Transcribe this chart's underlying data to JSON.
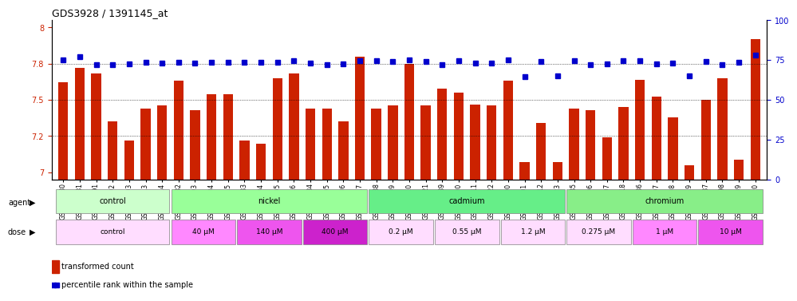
{
  "title": "GDS3928 / 1391145_at",
  "samples": [
    "GSM782280",
    "GSM782281",
    "GSM782291",
    "GSM782302",
    "GSM782303",
    "GSM782313",
    "GSM782314",
    "GSM782282",
    "GSM782293",
    "GSM782304",
    "GSM782315",
    "GSM782283",
    "GSM782294",
    "GSM782305",
    "GSM782316",
    "GSM782284",
    "GSM782295",
    "GSM782306",
    "GSM782317",
    "GSM782288",
    "GSM782299",
    "GSM782310",
    "GSM782321",
    "GSM782289",
    "GSM782300",
    "GSM782311",
    "GSM782322",
    "GSM782290",
    "GSM782301",
    "GSM782312",
    "GSM782323",
    "GSM782285",
    "GSM782296",
    "GSM782307",
    "GSM782318",
    "GSM782286",
    "GSM782297",
    "GSM782308",
    "GSM782319",
    "GSM782287",
    "GSM782298",
    "GSM782309",
    "GSM782320"
  ],
  "bar_values": [
    7.62,
    7.72,
    7.68,
    7.35,
    7.22,
    7.44,
    7.46,
    7.63,
    7.43,
    7.54,
    7.54,
    7.22,
    7.2,
    7.65,
    7.68,
    7.44,
    7.44,
    7.35,
    7.8,
    7.44,
    7.46,
    7.75,
    7.46,
    7.58,
    7.55,
    7.47,
    7.46,
    7.63,
    7.07,
    7.34,
    7.07,
    7.44,
    7.43,
    7.24,
    7.45,
    7.64,
    7.52,
    7.38,
    7.05,
    7.5,
    7.65,
    7.09,
    7.92
  ],
  "percentile_values": [
    75.0,
    77.0,
    72.0,
    72.0,
    72.5,
    73.5,
    73.0,
    73.5,
    73.0,
    73.5,
    73.5,
    73.5,
    73.5,
    73.5,
    74.5,
    73.0,
    72.0,
    72.5,
    74.5,
    74.5,
    74.0,
    75.0,
    74.0,
    72.0,
    74.5,
    73.0,
    73.0,
    75.0,
    64.5,
    74.0,
    65.0,
    74.5,
    72.0,
    72.5,
    74.5,
    74.5,
    72.5,
    73.0,
    65.0,
    74.0,
    72.0,
    73.5,
    78.0
  ],
  "ylim_left": [
    6.95,
    8.05
  ],
  "ylim_right": [
    0,
    100
  ],
  "yticks_left": [
    7.0,
    7.25,
    7.5,
    7.75,
    8.0
  ],
  "yticks_right": [
    0,
    25,
    50,
    75,
    100
  ],
  "bar_color": "#cc2200",
  "dot_color": "#0000cc",
  "agent_groups": [
    {
      "label": "control",
      "start": 0,
      "end": 6,
      "color": "#ccffcc"
    },
    {
      "label": "nickel",
      "start": 7,
      "end": 18,
      "color": "#99ff99"
    },
    {
      "label": "cadmium",
      "start": 19,
      "end": 30,
      "color": "#66ee88"
    },
    {
      "label": "chromium",
      "start": 31,
      "end": 42,
      "color": "#88ee88"
    }
  ],
  "dose_groups": [
    {
      "label": "control",
      "start": 0,
      "end": 6,
      "color": "#ffddff"
    },
    {
      "label": "40 μM",
      "start": 7,
      "end": 10,
      "color": "#ff66ff"
    },
    {
      "label": "140 μM",
      "start": 11,
      "end": 14,
      "color": "#dd44ee"
    },
    {
      "label": "400 μM",
      "start": 15,
      "end": 18,
      "color": "#bb22dd"
    },
    {
      "label": "0.2 μM",
      "start": 19,
      "end": 22,
      "color": "#ffddff"
    },
    {
      "label": "0.55 μM",
      "start": 23,
      "end": 26,
      "color": "#ffddff"
    },
    {
      "label": "1.2 μM",
      "start": 27,
      "end": 30,
      "color": "#ffddff"
    },
    {
      "label": "0.275 μM",
      "start": 31,
      "end": 34,
      "color": "#ffddff"
    },
    {
      "label": "1 μM",
      "start": 35,
      "end": 38,
      "color": "#ff66ff"
    },
    {
      "label": "10 μM",
      "start": 39,
      "end": 42,
      "color": "#dd44ee"
    }
  ],
  "legend_bar_label": "transformed count",
  "legend_dot_label": "percentile rank within the sample",
  "xlabel_agent": "agent",
  "xlabel_dose": "dose"
}
